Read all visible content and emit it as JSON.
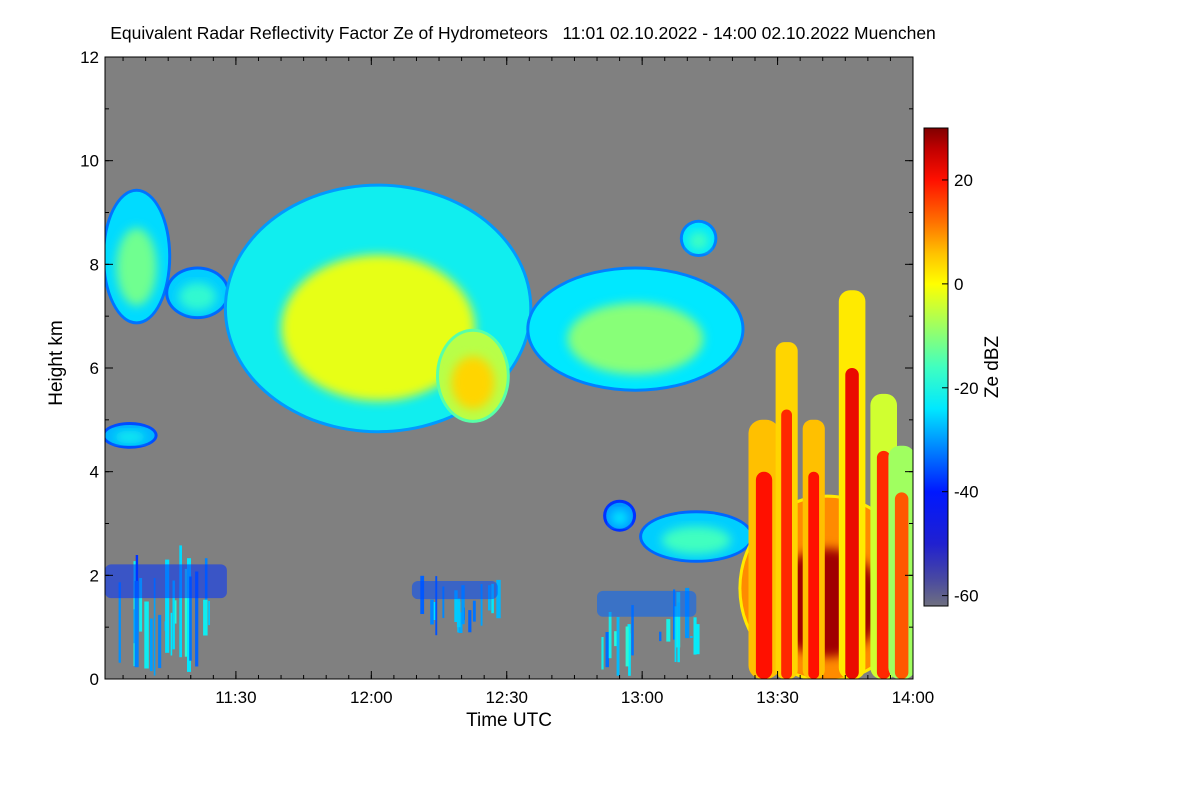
{
  "chart_data": {
    "type": "heatmap",
    "title": "Equivalent Radar Reflectivity Factor Ze of Hydrometeors   11:01 02.10.2022 - 14:00 02.10.2022 Muenchen",
    "xlabel": "Time UTC",
    "ylabel": "Height km",
    "x_range": [
      "11:01",
      "14:00"
    ],
    "x_ticks": [
      "11:30",
      "12:00",
      "12:30",
      "13:00",
      "13:30",
      "14:00"
    ],
    "ylim": [
      0,
      12
    ],
    "y_ticks": [
      "0",
      "2",
      "4",
      "6",
      "8",
      "10",
      "12"
    ],
    "colorbar": {
      "label": "Ze dBZ",
      "range": [
        -62,
        30
      ],
      "ticks": [
        "20",
        "0",
        "-20",
        "-40",
        "-60"
      ],
      "scale": [
        {
          "v": -62,
          "color": "#6f7080"
        },
        {
          "v": -57,
          "color": "#4a4aa0"
        },
        {
          "v": -50,
          "color": "#2020d0"
        },
        {
          "v": -40,
          "color": "#0018ff"
        },
        {
          "v": -32,
          "color": "#0080ff"
        },
        {
          "v": -24,
          "color": "#00e8ff"
        },
        {
          "v": -16,
          "color": "#40ffc0"
        },
        {
          "v": -8,
          "color": "#a0ff60"
        },
        {
          "v": 0,
          "color": "#ffff00"
        },
        {
          "v": 6,
          "color": "#ffc000"
        },
        {
          "v": 12,
          "color": "#ff7000"
        },
        {
          "v": 20,
          "color": "#ff1000"
        },
        {
          "v": 26,
          "color": "#c00000"
        },
        {
          "v": 30,
          "color": "#800000"
        }
      ]
    },
    "background_color": "#808080",
    "echoes": [
      {
        "t0": "11:01",
        "t1": "11:15",
        "h0": 6.9,
        "h1": 9.4,
        "ze_edge": -25,
        "ze_core": -12,
        "kind": "blob"
      },
      {
        "t0": "11:15",
        "t1": "11:28",
        "h0": 7.0,
        "h1": 7.9,
        "ze_edge": -26,
        "ze_core": -18,
        "kind": "blob"
      },
      {
        "t0": "11:28",
        "t1": "12:35",
        "h0": 4.8,
        "h1": 9.5,
        "ze_edge": -22,
        "ze_core": -2,
        "kind": "blob"
      },
      {
        "t0": "12:15",
        "t1": "12:30",
        "h0": 5.0,
        "h1": 6.7,
        "ze_edge": -6,
        "ze_core": 4,
        "kind": "blob"
      },
      {
        "t0": "12:35",
        "t1": "13:22",
        "h0": 5.6,
        "h1": 7.9,
        "ze_edge": -24,
        "ze_core": -10,
        "kind": "blob"
      },
      {
        "t0": "13:09",
        "t1": "13:16",
        "h0": 8.2,
        "h1": 8.8,
        "ze_edge": -24,
        "ze_core": -16,
        "kind": "blob"
      },
      {
        "t0": "11:01",
        "t1": "11:12",
        "h0": 4.5,
        "h1": 4.9,
        "ze_edge": -28,
        "ze_core": -22,
        "kind": "blob"
      },
      {
        "t0": "12:52",
        "t1": "12:58",
        "h0": 2.9,
        "h1": 3.4,
        "ze_edge": -30,
        "ze_core": -24,
        "kind": "blob"
      },
      {
        "t0": "13:00",
        "t1": "13:24",
        "h0": 2.3,
        "h1": 3.2,
        "ze_edge": -26,
        "ze_core": -16,
        "kind": "blob"
      },
      {
        "t0": "11:01",
        "t1": "11:28",
        "h0": 0.0,
        "h1": 2.6,
        "ze_edge": -38,
        "ze_core": -18,
        "kind": "streaks"
      },
      {
        "t0": "12:09",
        "t1": "12:28",
        "h0": 0.7,
        "h1": 2.1,
        "ze_edge": -36,
        "ze_core": -22,
        "kind": "streaks"
      },
      {
        "t0": "12:50",
        "t1": "13:12",
        "h0": 0.0,
        "h1": 2.0,
        "ze_edge": -34,
        "ze_core": -18,
        "kind": "streaks"
      },
      {
        "t0": "13:22",
        "t1": "14:00",
        "h0": 0.0,
        "h1": 3.5,
        "ze_edge": 10,
        "ze_core": 28,
        "kind": "blob"
      },
      {
        "t0": "13:24",
        "t1": "13:30",
        "h0": 0.0,
        "h1": 5.0,
        "ze_edge": 6,
        "ze_core": 20,
        "kind": "column"
      },
      {
        "t0": "13:30",
        "t1": "13:34",
        "h0": 0.0,
        "h1": 6.5,
        "ze_edge": 4,
        "ze_core": 18,
        "kind": "column"
      },
      {
        "t0": "13:36",
        "t1": "13:40",
        "h0": 0.0,
        "h1": 5.0,
        "ze_edge": 6,
        "ze_core": 20,
        "kind": "column"
      },
      {
        "t0": "13:44",
        "t1": "13:49",
        "h0": 0.0,
        "h1": 7.5,
        "ze_edge": 2,
        "ze_core": 22,
        "kind": "column"
      },
      {
        "t0": "13:51",
        "t1": "13:56",
        "h0": 0.0,
        "h1": 5.5,
        "ze_edge": -4,
        "ze_core": 18,
        "kind": "column"
      },
      {
        "t0": "13:55",
        "t1": "14:00",
        "h0": 0.0,
        "h1": 4.5,
        "ze_edge": -8,
        "ze_core": 14,
        "kind": "column"
      }
    ]
  }
}
